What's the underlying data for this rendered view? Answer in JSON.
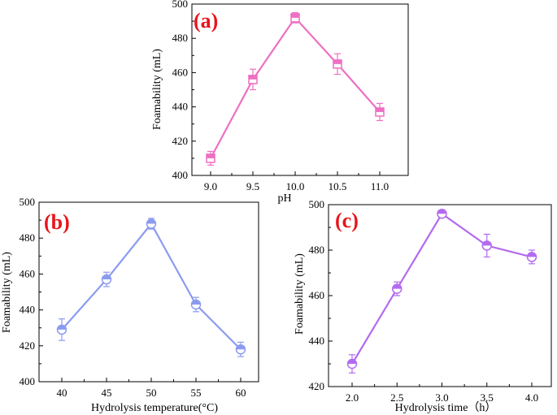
{
  "chart_data": [
    {
      "type": "line",
      "panel_label": "(a)",
      "xlabel": "pH",
      "ylabel": "Foamability (mL)",
      "x": [
        9.0,
        9.5,
        10.0,
        10.5,
        11.0
      ],
      "x_tick_labels": [
        "9.0",
        "9.5",
        "10.0",
        "10.5",
        "11.0"
      ],
      "y_ticks": [
        400,
        420,
        440,
        460,
        480,
        500
      ],
      "ylim": [
        400,
        500
      ],
      "series": [
        {
          "values": [
            410,
            456,
            492,
            465,
            437
          ],
          "errors": [
            4,
            6,
            3,
            6,
            5
          ],
          "color": "#ee6fc3",
          "marker": "square-half"
        }
      ]
    },
    {
      "type": "line",
      "panel_label": "(b)",
      "xlabel": "Hydrolysis temperature(°C)",
      "ylabel": "Foamability (mL)",
      "x": [
        40,
        45,
        50,
        55,
        60
      ],
      "x_tick_labels": [
        "40",
        "45",
        "50",
        "55",
        "60"
      ],
      "y_ticks": [
        400,
        420,
        440,
        460,
        480,
        500
      ],
      "ylim": [
        400,
        500
      ],
      "series": [
        {
          "values": [
            429,
            457,
            488,
            443,
            418
          ],
          "errors": [
            6,
            4,
            3,
            4,
            4
          ],
          "color": "#8b9bf0",
          "marker": "circle-half"
        }
      ]
    },
    {
      "type": "line",
      "panel_label": "(c)",
      "xlabel": "Hydrolysis time（h）",
      "ylabel": "Foamability (mL)",
      "x": [
        2.0,
        2.5,
        3.0,
        3.5,
        4.0
      ],
      "x_tick_labels": [
        "2.0",
        "2.5",
        "3.0",
        "3.5",
        "4.0"
      ],
      "y_ticks": [
        420,
        440,
        460,
        480,
        500
      ],
      "ylim": [
        420,
        500
      ],
      "series": [
        {
          "values": [
            430,
            463,
            496,
            482,
            477
          ],
          "errors": [
            4,
            3,
            1,
            5,
            3
          ],
          "color": "#b36af0",
          "marker": "circle-half"
        }
      ]
    }
  ]
}
